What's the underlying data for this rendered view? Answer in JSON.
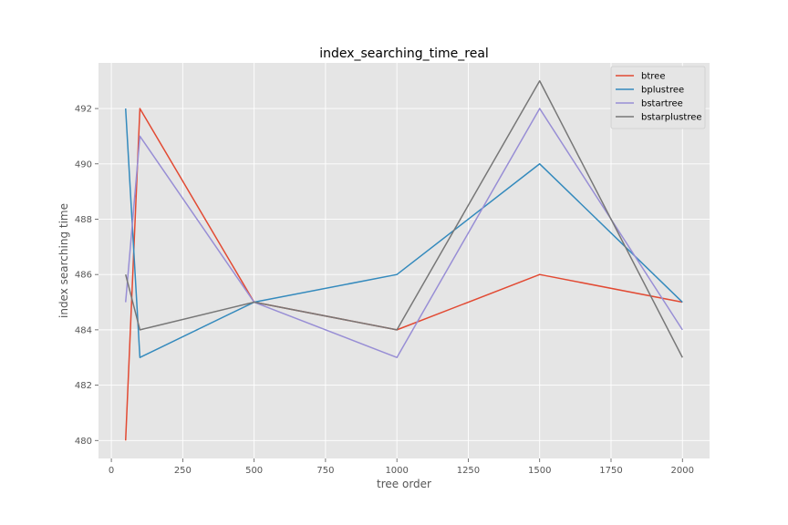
{
  "chart_data": {
    "type": "line",
    "title": "index_searching_time_real",
    "xlabel": "tree order",
    "ylabel": "index searching time",
    "xlim": [
      -45,
      2095
    ],
    "ylim": [
      479.35,
      493.65
    ],
    "xticks": [
      0,
      250,
      500,
      750,
      1000,
      1250,
      1500,
      1750,
      2000
    ],
    "yticks": [
      480,
      482,
      484,
      486,
      488,
      490,
      492
    ],
    "grid": true,
    "legend_position": "top-right",
    "x": [
      50,
      100,
      500,
      1000,
      1500,
      2000
    ],
    "series": [
      {
        "name": "btree",
        "color": "#E24A33",
        "values": [
          480,
          492,
          485,
          484,
          486,
          485
        ]
      },
      {
        "name": "bplustree",
        "color": "#348ABD",
        "values": [
          492,
          483,
          485,
          486,
          490,
          485
        ]
      },
      {
        "name": "bstartree",
        "color": "#988ED5",
        "values": [
          485,
          491,
          485,
          483,
          492,
          484
        ]
      },
      {
        "name": "bstarplustree",
        "color": "#777777",
        "values": [
          486,
          484,
          485,
          484,
          493,
          483
        ]
      }
    ]
  },
  "style": {
    "plot_bg": "#E5E5E5",
    "grid_color": "#FFFFFF"
  }
}
